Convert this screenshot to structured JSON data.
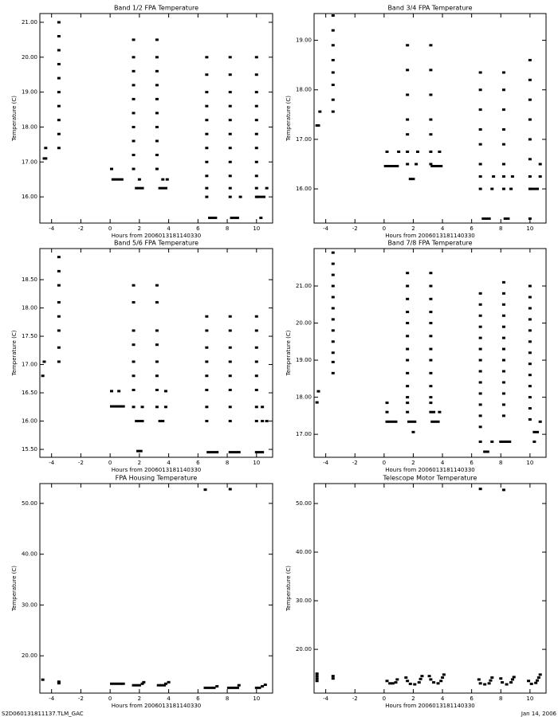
{
  "chart_data": [
    {
      "type": "scatter",
      "title": "Band 1/2 FPA Temperature",
      "xlabel": "Hours from 2006013181140330",
      "ylabel": "Temperature (C)",
      "color": "#000000",
      "xlim": [
        -4.8,
        11.1
      ],
      "ylim": [
        15.25,
        21.25
      ],
      "xticks": [
        -4,
        -2,
        0,
        2,
        4,
        6,
        8,
        10
      ],
      "yticks": [
        {
          "value": 16,
          "label": "16.00"
        },
        {
          "value": 17,
          "label": "17.00"
        },
        {
          "value": 18,
          "label": "18.00"
        },
        {
          "value": 19,
          "label": "19.00"
        },
        {
          "value": 20,
          "label": "20.00"
        },
        {
          "value": 21,
          "label": "21.00"
        }
      ],
      "x": [
        -4.5,
        -4.4,
        -4.4,
        -3.5,
        -3.5,
        -3.5,
        -3.5,
        -3.5,
        -3.5,
        -3.5,
        -3.5,
        -3.5,
        -3.5,
        0.1,
        0.2,
        0.4,
        0.6,
        0.8,
        1.6,
        1.6,
        1.6,
        1.6,
        1.6,
        1.6,
        1.6,
        1.6,
        1.6,
        1.6,
        1.8,
        2.0,
        2.2,
        2.0,
        3.2,
        3.2,
        3.2,
        3.2,
        3.2,
        3.2,
        3.2,
        3.2,
        3.2,
        3.2,
        3.4,
        3.6,
        3.8,
        3.6,
        3.9,
        6.6,
        6.6,
        6.6,
        6.6,
        6.6,
        6.6,
        6.6,
        6.6,
        6.6,
        6.6,
        6.6,
        6.8,
        7.0,
        7.2,
        8.2,
        8.2,
        8.2,
        8.2,
        8.2,
        8.2,
        8.2,
        8.2,
        8.2,
        8.2,
        8.2,
        8.3,
        8.5,
        8.7,
        8.9,
        10.0,
        10.0,
        10.0,
        10.0,
        10.0,
        10.0,
        10.0,
        10.0,
        10.0,
        10.0,
        10.0,
        10.1,
        10.3,
        10.5,
        10.3,
        10.7
      ],
      "values": [
        17.1,
        17.4,
        17.1,
        17.4,
        17.8,
        18.2,
        18.6,
        19.0,
        19.4,
        19.8,
        20.2,
        20.6,
        21.0,
        16.8,
        16.5,
        16.5,
        16.5,
        16.5,
        16.8,
        17.2,
        17.6,
        18.0,
        18.4,
        18.8,
        19.2,
        19.6,
        20.0,
        20.5,
        16.25,
        16.25,
        16.25,
        16.5,
        16.8,
        17.2,
        17.6,
        18.0,
        18.4,
        18.8,
        19.2,
        19.6,
        20.0,
        20.5,
        16.25,
        16.25,
        16.25,
        16.5,
        16.5,
        16.0,
        16.25,
        16.6,
        17.0,
        17.4,
        17.8,
        18.2,
        18.6,
        19.0,
        19.5,
        20.0,
        15.4,
        15.4,
        15.4,
        16.0,
        16.25,
        16.6,
        17.0,
        17.4,
        17.8,
        18.2,
        18.6,
        19.0,
        19.5,
        20.0,
        15.4,
        15.4,
        15.4,
        16.0,
        16.0,
        16.25,
        16.6,
        17.0,
        17.4,
        17.8,
        18.2,
        18.6,
        19.0,
        19.5,
        20.0,
        16.0,
        16.0,
        16.0,
        15.4,
        16.25
      ]
    },
    {
      "type": "scatter",
      "title": "Band 3/4 FPA Temperature",
      "xlabel": "Hours from 2006013181140330",
      "ylabel": "Temperature (C)",
      "color": "#000000",
      "xlim": [
        -4.8,
        11.1
      ],
      "ylim": [
        15.31,
        19.54
      ],
      "xticks": [
        -4,
        -2,
        0,
        2,
        4,
        6,
        8,
        10
      ],
      "yticks": [
        {
          "value": 16,
          "label": "16.00"
        },
        {
          "value": 17,
          "label": "17.00"
        },
        {
          "value": 18,
          "label": "18.00"
        },
        {
          "value": 19,
          "label": "19.00"
        }
      ],
      "x": [
        -4.6,
        -4.5,
        -4.4,
        -3.5,
        -3.5,
        -3.5,
        -3.5,
        -3.5,
        -3.5,
        -3.5,
        -3.5,
        0.1,
        0.3,
        0.5,
        0.7,
        0.9,
        0.2,
        1.0,
        1.6,
        1.6,
        1.6,
        1.6,
        1.6,
        1.6,
        1.6,
        1.8,
        2.0,
        2.2,
        2.3,
        3.2,
        3.2,
        3.2,
        3.2,
        3.2,
        3.2,
        3.2,
        3.3,
        3.5,
        3.7,
        3.9,
        3.8,
        6.6,
        6.6,
        6.6,
        6.6,
        6.6,
        6.6,
        6.6,
        6.6,
        6.8,
        7.0,
        7.2,
        7.5,
        7.4,
        8.2,
        8.2,
        8.2,
        8.2,
        8.2,
        8.2,
        8.2,
        8.2,
        8.3,
        8.5,
        8.8,
        8.7,
        10.0,
        10.0,
        10.0,
        10.0,
        10.0,
        10.0,
        10.0,
        10.0,
        10.1,
        10.3,
        10.5,
        10.0,
        10.7,
        10.7
      ],
      "values": [
        17.28,
        17.28,
        17.56,
        19.5,
        19.2,
        18.9,
        18.6,
        18.35,
        18.1,
        17.8,
        17.56,
        16.46,
        16.46,
        16.46,
        16.46,
        16.46,
        16.75,
        16.75,
        18.9,
        18.4,
        17.9,
        17.4,
        17.1,
        16.75,
        16.5,
        16.2,
        16.2,
        16.5,
        16.75,
        18.9,
        18.4,
        17.9,
        17.4,
        17.1,
        16.75,
        16.5,
        16.46,
        16.46,
        16.46,
        16.46,
        16.75,
        18.35,
        18.0,
        17.6,
        17.2,
        16.9,
        16.5,
        16.25,
        16.0,
        15.4,
        15.4,
        15.4,
        16.25,
        16.0,
        18.35,
        18.0,
        17.6,
        17.2,
        16.9,
        16.5,
        16.25,
        16.0,
        15.4,
        15.4,
        16.25,
        16.0,
        18.6,
        18.2,
        17.8,
        17.4,
        17.0,
        16.6,
        16.25,
        16.0,
        16.0,
        16.0,
        16.0,
        15.4,
        16.5,
        16.25
      ]
    },
    {
      "type": "scatter",
      "title": "Band 5/6 FPA Temperature",
      "xlabel": "Hours from 2006013181140330",
      "ylabel": "Temperature (C)",
      "color": "#000000",
      "xlim": [
        -4.8,
        11.1
      ],
      "ylim": [
        15.36,
        19.05
      ],
      "xticks": [
        -4,
        -2,
        0,
        2,
        4,
        6,
        8,
        10
      ],
      "yticks": [
        {
          "value": 15.5,
          "label": "15.50"
        },
        {
          "value": 16,
          "label": "16.00"
        },
        {
          "value": 16.5,
          "label": "16.50"
        },
        {
          "value": 17,
          "label": "17.00"
        },
        {
          "value": 17.5,
          "label": "17.50"
        },
        {
          "value": 18,
          "label": "18.00"
        },
        {
          "value": 18.5,
          "label": "18.50"
        }
      ],
      "x": [
        -4.6,
        -4.5,
        -3.5,
        -3.5,
        -3.5,
        -3.5,
        -3.5,
        -3.5,
        -3.5,
        -3.5,
        0.1,
        0.6,
        0.1,
        0.3,
        0.5,
        0.7,
        0.9,
        1.6,
        1.6,
        1.6,
        1.6,
        1.6,
        1.6,
        1.6,
        1.6,
        1.8,
        2.0,
        2.2,
        1.9,
        2.1,
        2.2,
        3.2,
        3.2,
        3.2,
        3.2,
        3.2,
        3.2,
        3.2,
        3.2,
        3.4,
        3.6,
        3.8,
        3.8,
        6.6,
        6.6,
        6.6,
        6.6,
        6.6,
        6.6,
        6.6,
        6.6,
        6.7,
        6.9,
        7.1,
        7.3,
        8.2,
        8.2,
        8.2,
        8.2,
        8.2,
        8.2,
        8.2,
        8.2,
        8.2,
        8.4,
        8.6,
        8.8,
        10.0,
        10.0,
        10.0,
        10.0,
        10.0,
        10.0,
        10.0,
        10.0,
        10.0,
        10.2,
        10.4,
        10.4,
        10.4,
        10.7
      ],
      "values": [
        16.8,
        17.05,
        18.9,
        18.65,
        18.4,
        18.1,
        17.85,
        17.6,
        17.3,
        17.05,
        16.53,
        16.53,
        16.26,
        16.26,
        16.26,
        16.26,
        16.26,
        18.4,
        18.1,
        17.6,
        17.35,
        17.05,
        16.8,
        16.55,
        16.25,
        16.0,
        16.0,
        16.0,
        15.47,
        15.47,
        16.25,
        18.4,
        18.1,
        17.6,
        17.35,
        17.05,
        16.8,
        16.55,
        16.25,
        16.0,
        16.0,
        16.25,
        16.53,
        17.85,
        17.6,
        17.3,
        17.05,
        16.8,
        16.55,
        16.25,
        16.0,
        15.45,
        15.45,
        15.45,
        15.45,
        17.85,
        17.6,
        17.3,
        17.05,
        16.8,
        16.55,
        16.25,
        16.0,
        15.45,
        15.45,
        15.45,
        15.45,
        17.85,
        17.6,
        17.3,
        17.05,
        16.8,
        16.55,
        16.25,
        16.0,
        15.45,
        15.45,
        15.45,
        16.0,
        16.25,
        16.0
      ]
    },
    {
      "type": "scatter",
      "title": "Band 7/8 FPA Temperature",
      "xlabel": "Hours from 2006013181140330",
      "ylabel": "Temperature (C)",
      "color": "#000000",
      "xlim": [
        -4.8,
        11.1
      ],
      "ylim": [
        16.38,
        22.01
      ],
      "xticks": [
        -4,
        -2,
        0,
        2,
        4,
        6,
        8,
        10
      ],
      "yticks": [
        {
          "value": 17,
          "label": "17.00"
        },
        {
          "value": 18,
          "label": "18.00"
        },
        {
          "value": 19,
          "label": "19.00"
        },
        {
          "value": 20,
          "label": "20.00"
        },
        {
          "value": 21,
          "label": "21.00"
        }
      ],
      "x": [
        -4.6,
        -4.5,
        -3.5,
        -3.5,
        -3.5,
        -3.5,
        -3.5,
        -3.5,
        -3.5,
        -3.5,
        -3.5,
        -3.5,
        -3.5,
        -3.5,
        0.2,
        0.2,
        0.2,
        0.4,
        0.6,
        0.8,
        1.6,
        1.6,
        1.6,
        1.6,
        1.6,
        1.6,
        1.6,
        1.6,
        1.6,
        1.6,
        1.6,
        1.6,
        1.6,
        1.7,
        1.9,
        2.1,
        2.0,
        3.2,
        3.2,
        3.2,
        3.2,
        3.2,
        3.2,
        3.2,
        3.2,
        3.2,
        3.2,
        3.2,
        3.2,
        3.2,
        3.3,
        3.5,
        3.7,
        3.4,
        3.8,
        6.6,
        6.6,
        6.6,
        6.6,
        6.6,
        6.6,
        6.6,
        6.6,
        6.6,
        6.6,
        6.6,
        6.6,
        6.6,
        6.6,
        6.9,
        7.1,
        7.4,
        8.2,
        8.2,
        8.2,
        8.2,
        8.2,
        8.2,
        8.2,
        8.2,
        8.2,
        8.2,
        8.2,
        8.2,
        8.2,
        8.0,
        8.2,
        8.4,
        8.6,
        10.0,
        10.0,
        10.0,
        10.0,
        10.0,
        10.0,
        10.0,
        10.0,
        10.0,
        10.0,
        10.0,
        10.0,
        10.0,
        10.3,
        10.5,
        10.3,
        10.7
      ],
      "values": [
        17.86,
        18.16,
        21.9,
        21.6,
        21.3,
        21.0,
        20.7,
        20.4,
        20.1,
        19.8,
        19.5,
        19.2,
        18.95,
        18.65,
        17.85,
        17.6,
        17.34,
        17.34,
        17.34,
        17.34,
        21.35,
        21.0,
        20.65,
        20.3,
        20.0,
        19.65,
        19.3,
        19.0,
        18.65,
        18.3,
        18.0,
        17.85,
        17.6,
        17.34,
        17.34,
        17.34,
        17.06,
        21.35,
        21.0,
        20.65,
        20.3,
        20.0,
        19.65,
        19.3,
        19.0,
        18.65,
        18.3,
        18.0,
        17.85,
        17.6,
        17.34,
        17.34,
        17.34,
        17.6,
        17.6,
        20.8,
        20.5,
        20.2,
        19.9,
        19.6,
        19.3,
        19.0,
        18.7,
        18.4,
        18.1,
        17.8,
        17.5,
        17.2,
        16.8,
        16.53,
        16.53,
        16.8,
        21.1,
        20.8,
        20.5,
        20.2,
        19.9,
        19.6,
        19.3,
        19.0,
        18.7,
        18.4,
        18.1,
        17.8,
        17.5,
        16.8,
        16.8,
        16.8,
        16.8,
        21.0,
        20.7,
        20.4,
        20.1,
        19.8,
        19.5,
        19.2,
        18.9,
        18.6,
        18.3,
        18.0,
        17.7,
        17.4,
        17.06,
        17.06,
        16.8,
        17.34
      ]
    },
    {
      "type": "scatter",
      "title": "FPA Housing Temperature",
      "xlabel": "Hours from 2006013181140330",
      "ylabel": "Temperature (C)",
      "color": "#000000",
      "xlim": [
        -4.8,
        11.1
      ],
      "ylim": [
        12.66,
        53.9
      ],
      "xticks": [
        -4,
        -2,
        0,
        2,
        4,
        6,
        8,
        10
      ],
      "yticks": [
        {
          "value": 20,
          "label": "20.00"
        },
        {
          "value": 30,
          "label": "30.00"
        },
        {
          "value": 40,
          "label": "40.00"
        },
        {
          "value": 50,
          "label": "50.00"
        }
      ],
      "x": [
        -4.6,
        -3.5,
        -3.5,
        0.1,
        0.3,
        0.5,
        0.7,
        0.9,
        1.6,
        1.8,
        2.0,
        2.2,
        2.3,
        3.3,
        3.5,
        3.7,
        3.8,
        4.0,
        6.5,
        6.7,
        6.9,
        7.1,
        7.3,
        8.1,
        8.3,
        8.5,
        8.7,
        8.8,
        10.0,
        10.2,
        10.4,
        10.6,
        6.5,
        8.2
      ],
      "values": [
        15.3,
        14.9,
        14.6,
        14.5,
        14.5,
        14.5,
        14.5,
        14.5,
        14.2,
        14.2,
        14.2,
        14.5,
        14.8,
        14.2,
        14.2,
        14.2,
        14.5,
        14.8,
        13.7,
        13.7,
        13.7,
        13.7,
        14.0,
        13.7,
        13.7,
        13.7,
        13.7,
        14.2,
        13.7,
        13.7,
        14.0,
        14.3,
        52.7,
        52.8
      ]
    },
    {
      "type": "scatter",
      "title": "Telescope Motor Temperature",
      "xlabel": "Hours from 2006013181140330",
      "ylabel": "Temperature (C)",
      "color": "#000000",
      "xlim": [
        -4.8,
        11.1
      ],
      "ylim": [
        11.0,
        54.1
      ],
      "xticks": [
        -4,
        -2,
        0,
        2,
        4,
        6,
        8,
        10
      ],
      "yticks": [
        {
          "value": 20,
          "label": "20.00"
        },
        {
          "value": 30,
          "label": "30.00"
        },
        {
          "value": 40,
          "label": "40.00"
        },
        {
          "value": 50,
          "label": "50.00"
        }
      ],
      "x": [
        -4.6,
        -4.6,
        -4.6,
        -4.6,
        -3.5,
        -3.5,
        0.2,
        0.4,
        0.6,
        0.8,
        0.9,
        1.5,
        1.6,
        1.8,
        2.1,
        2.4,
        2.5,
        2.6,
        3.1,
        3.2,
        3.4,
        3.7,
        3.9,
        4.0,
        4.1,
        6.5,
        6.6,
        6.9,
        7.2,
        7.3,
        7.4,
        8.0,
        8.1,
        8.4,
        8.7,
        8.8,
        8.9,
        9.9,
        10.1,
        10.4,
        10.5,
        10.6,
        10.7,
        6.6,
        8.2
      ],
      "values": [
        13.5,
        14.0,
        14.5,
        15.0,
        14.0,
        14.5,
        13.5,
        13.0,
        13.0,
        13.2,
        13.8,
        14.2,
        13.5,
        12.9,
        12.8,
        13.2,
        13.9,
        14.5,
        14.5,
        13.8,
        13.2,
        13.0,
        13.5,
        14.2,
        14.8,
        13.8,
        13.0,
        12.8,
        13.0,
        13.6,
        14.2,
        14.0,
        13.2,
        12.8,
        13.2,
        13.8,
        14.3,
        13.5,
        12.9,
        13.1,
        13.6,
        14.2,
        14.8,
        53.0,
        52.8
      ]
    }
  ],
  "footer_left": "S2D060131811137.TLM_GAC",
  "footer_right": "Jan 14, 2006"
}
